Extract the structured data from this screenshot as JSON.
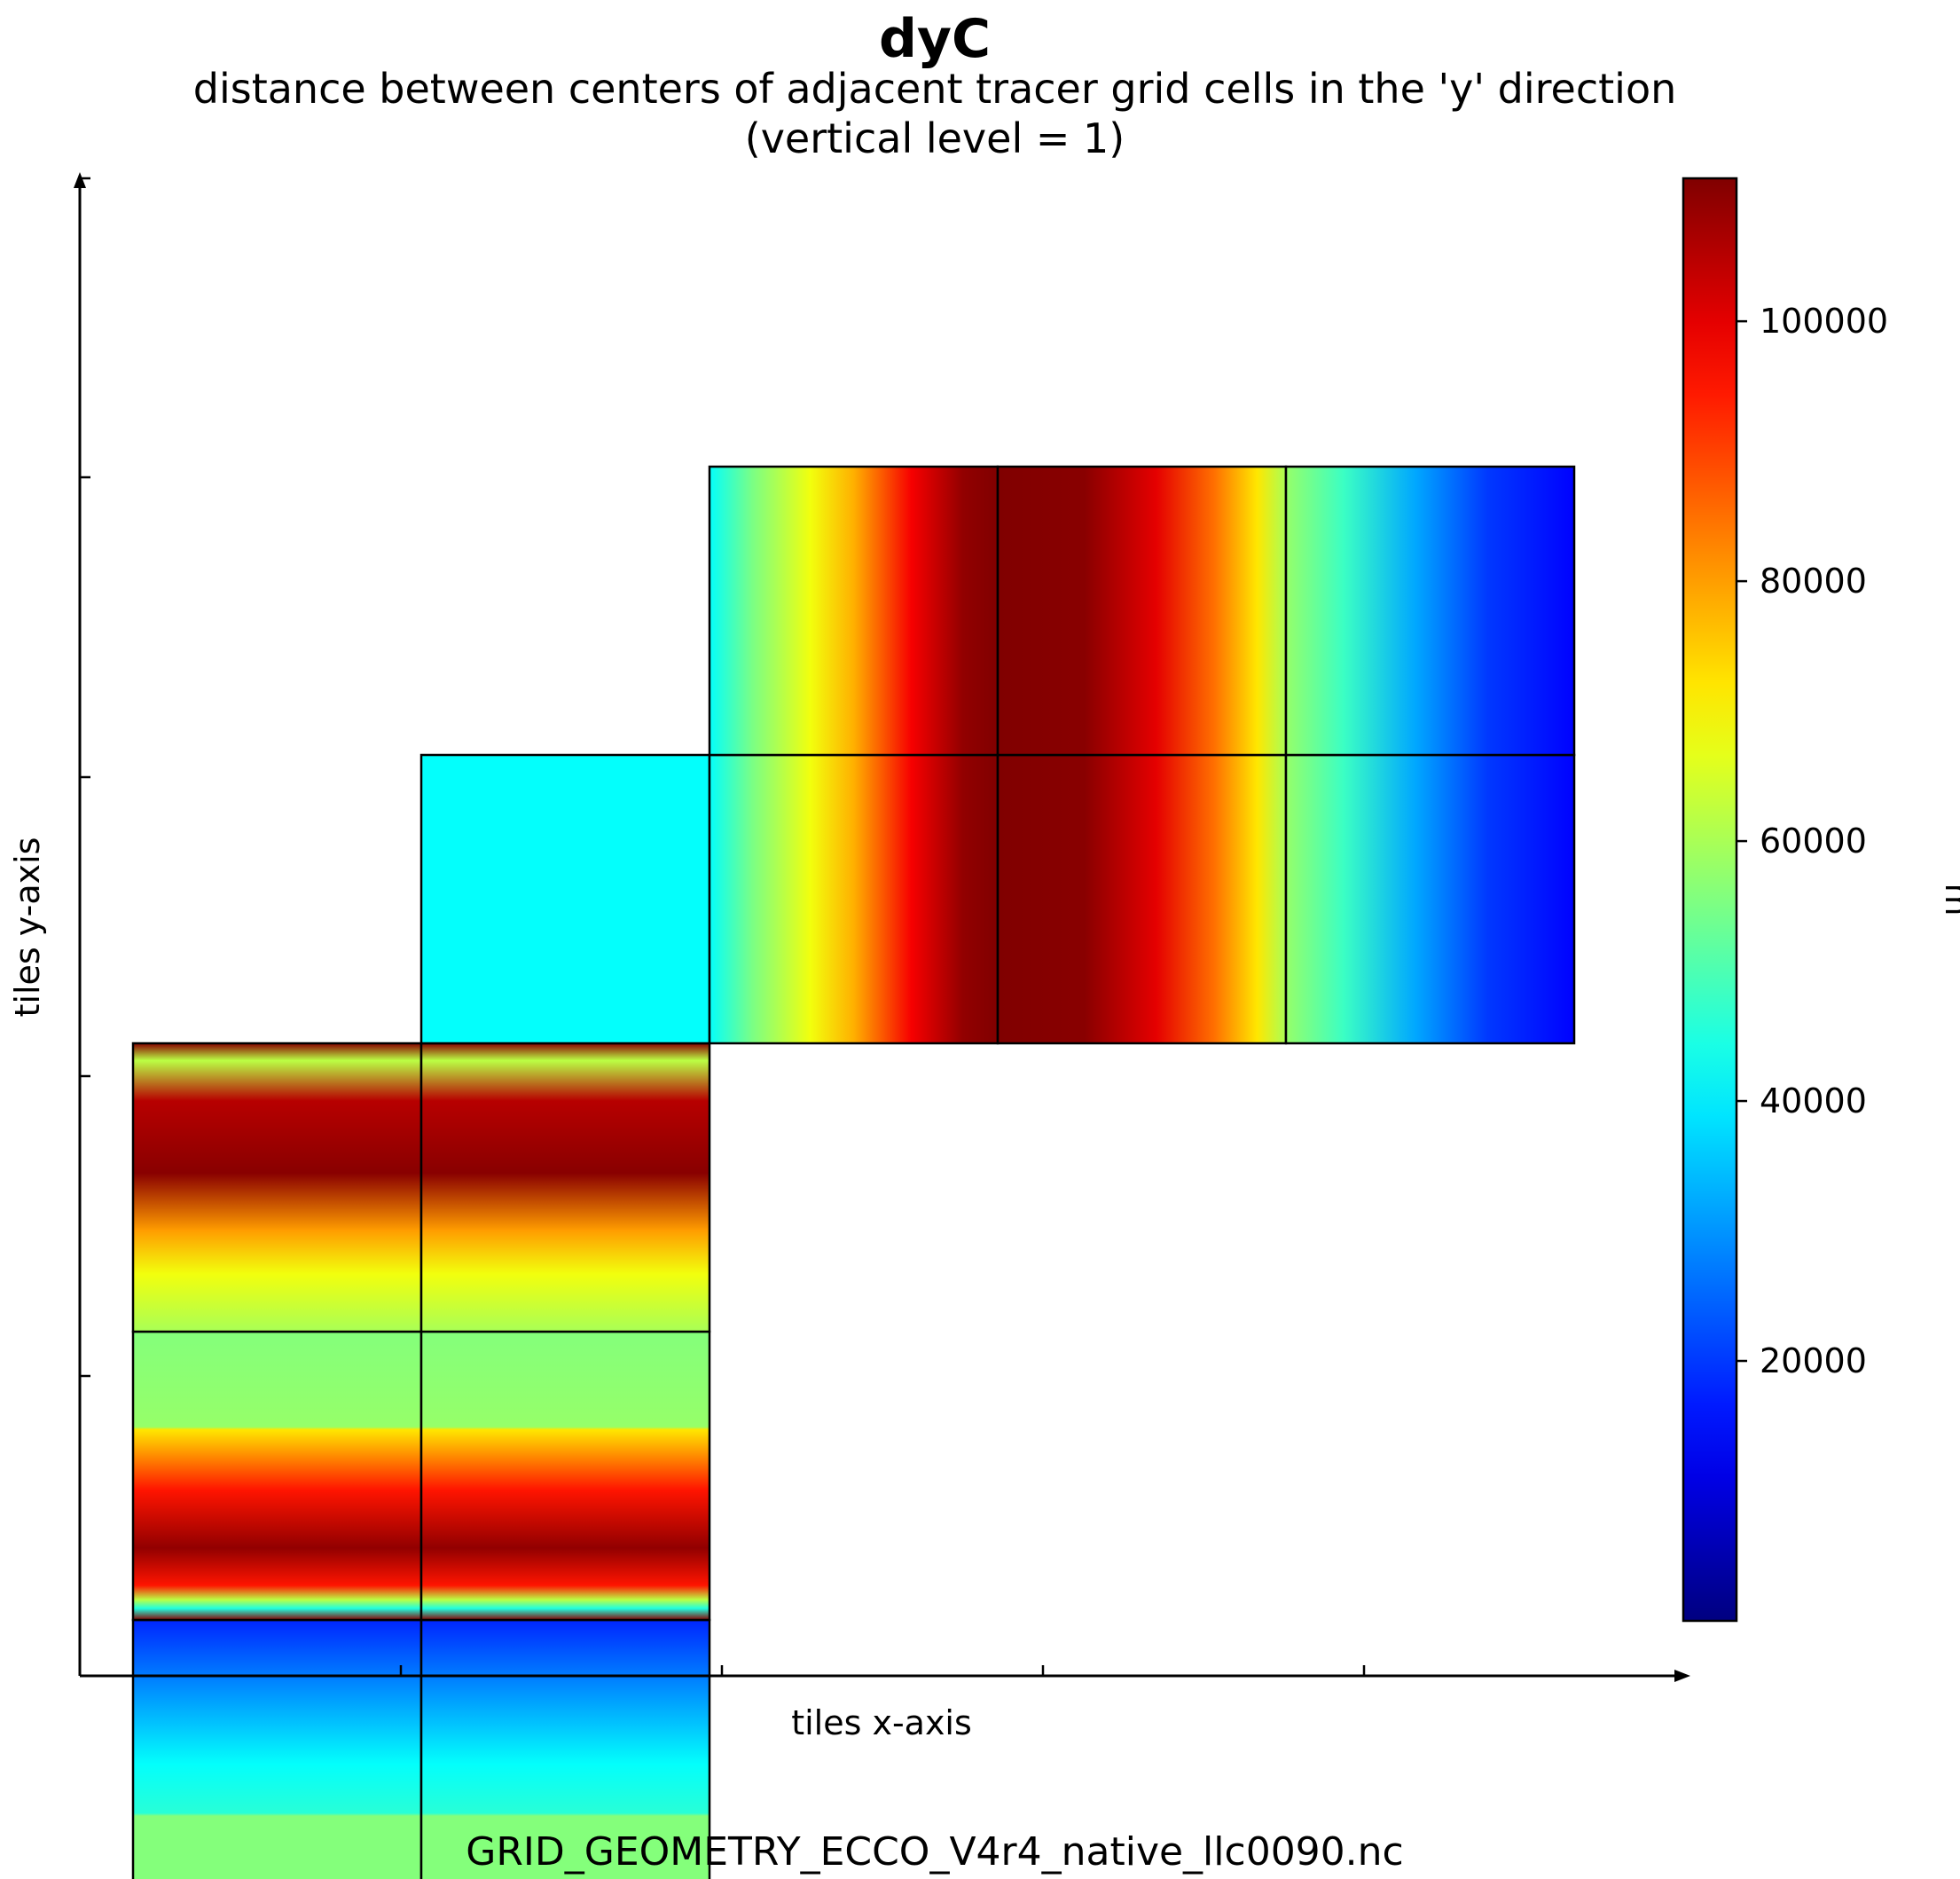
{
  "chart_data": {
    "type": "heatmap",
    "title": "dyC",
    "subtitle_lines": [
      "distance between centers of adjacent tracer grid cells in the 'y' direction",
      "(vertical level = 1)"
    ],
    "xlabel": "tiles x-axis",
    "ylabel": "tiles y-axis",
    "footer": "GRID_GEOMETRY_ECCO_V4r4_native_llc0090.nc",
    "colormap": "jet",
    "colorbar": {
      "label": "m",
      "range": [
        0,
        111000
      ],
      "ticks": [
        20000,
        40000,
        60000,
        80000,
        100000
      ],
      "tick_labels": [
        "20000",
        "40000",
        "60000",
        "80000",
        "100000"
      ]
    },
    "layout_grid": {
      "columns": 6,
      "rows": 6
    },
    "tiles": [
      {
        "name": "tile-1",
        "col": 0,
        "row": 5,
        "pattern": "south-cap",
        "orientation": "rows"
      },
      {
        "name": "tile-2",
        "col": 0,
        "row": 4,
        "pattern": "lowlat-lower",
        "orientation": "rows"
      },
      {
        "name": "tile-3",
        "col": 0,
        "row": 3,
        "pattern": "midlat-upper",
        "orientation": "rows"
      },
      {
        "name": "tile-4",
        "col": 1,
        "row": 5,
        "pattern": "south-cap",
        "orientation": "rows"
      },
      {
        "name": "tile-5",
        "col": 1,
        "row": 4,
        "pattern": "lowlat-lower",
        "orientation": "rows"
      },
      {
        "name": "tile-6",
        "col": 1,
        "row": 3,
        "pattern": "midlat-upper",
        "orientation": "rows"
      },
      {
        "name": "tile-7",
        "col": 1,
        "row": 2,
        "pattern": "arctic-cap",
        "orientation": "none"
      },
      {
        "name": "tile-8",
        "col": 2,
        "row": 2,
        "pattern": "rot-a",
        "orientation": "columns"
      },
      {
        "name": "tile-9",
        "col": 3,
        "row": 2,
        "pattern": "rot-b",
        "orientation": "columns"
      },
      {
        "name": "tile-10",
        "col": 4,
        "row": 2,
        "pattern": "rot-c",
        "orientation": "columns"
      },
      {
        "name": "tile-11",
        "col": 2,
        "row": 1,
        "pattern": "rot-a",
        "orientation": "columns"
      },
      {
        "name": "tile-12",
        "col": 3,
        "row": 1,
        "pattern": "rot-b",
        "orientation": "columns"
      },
      {
        "name": "tile-13",
        "col": 4,
        "row": 1,
        "pattern": "rot-c",
        "orientation": "columns"
      }
    ],
    "gradients": {
      "south-cap": [
        [
          0,
          18000
        ],
        [
          0.25,
          30000
        ],
        [
          0.5,
          42000
        ],
        [
          0.67,
          46000
        ],
        [
          0.68,
          56000
        ],
        [
          1,
          56000
        ]
      ],
      "lowlat-lower": [
        [
          0,
          56000
        ],
        [
          0.33,
          58000
        ],
        [
          0.34,
          72000
        ],
        [
          0.55,
          95000
        ],
        [
          0.75,
          109000
        ],
        [
          0.88,
          95000
        ],
        [
          0.93,
          62000
        ],
        [
          0.96,
          45000
        ],
        [
          1,
          110000
        ]
      ],
      "midlat-upper": [
        [
          0,
          110000
        ],
        [
          0.06,
          62000
        ],
        [
          0.2,
          105000
        ],
        [
          0.45,
          110000
        ],
        [
          0.65,
          80000
        ],
        [
          0.8,
          68000
        ],
        [
          1,
          60000
        ]
      ],
      "arctic-cap": [
        [
          0,
          42000
        ],
        [
          1,
          42000
        ]
      ],
      "rot-a": [
        [
          0,
          42000
        ],
        [
          0.15,
          55000
        ],
        [
          0.35,
          68000
        ],
        [
          0.5,
          78000
        ],
        [
          0.7,
          98000
        ],
        [
          0.88,
          109000
        ],
        [
          1,
          111000
        ]
      ],
      "rot-b": [
        [
          0,
          111000
        ],
        [
          0.3,
          110000
        ],
        [
          0.55,
          100000
        ],
        [
          0.75,
          85000
        ],
        [
          0.9,
          72000
        ],
        [
          1,
          60000
        ]
      ],
      "rot-c": [
        [
          0,
          58000
        ],
        [
          0.2,
          48000
        ],
        [
          0.45,
          32000
        ],
        [
          0.7,
          20000
        ],
        [
          1,
          14000
        ]
      ]
    }
  }
}
